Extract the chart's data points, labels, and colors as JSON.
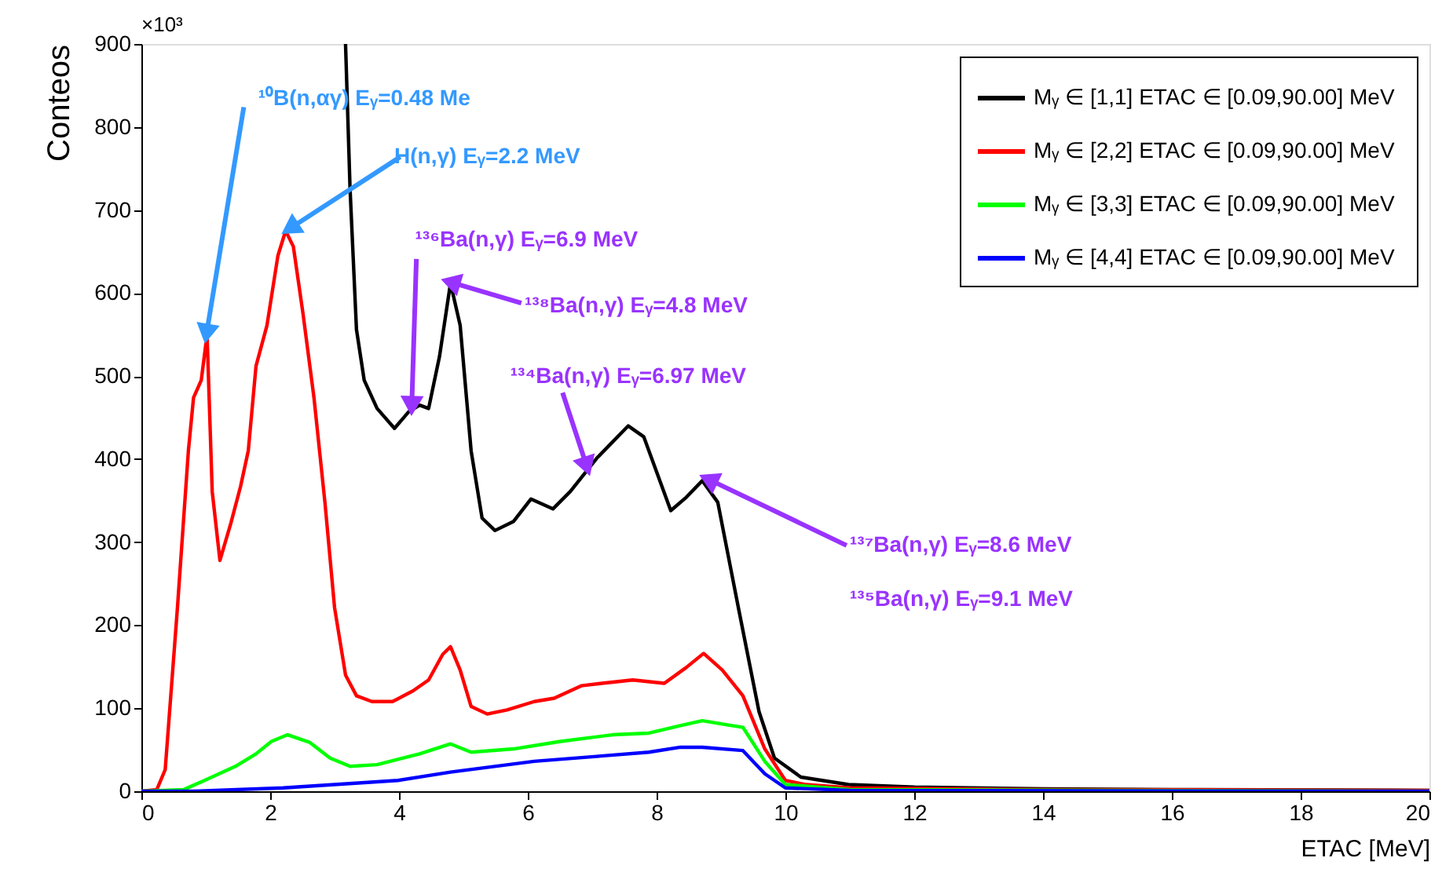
{
  "chart_data": {
    "type": "line",
    "xlabel": "ETAC [MeV]",
    "ylabel": "Conteos",
    "xlim": [
      0,
      20
    ],
    "xticks": [
      0,
      2,
      4,
      6,
      8,
      10,
      12,
      14,
      16,
      18,
      20
    ],
    "ylim": [
      0,
      900
    ],
    "yticks": [
      0,
      100,
      200,
      300,
      400,
      500,
      600,
      700,
      800,
      900
    ],
    "grid": false,
    "legend": "top right",
    "series": [
      {
        "name": "Mᵧ ∈ [1,1]  ETAC ∈ [0.09,90.00] MeV",
        "color": "#000000",
        "x": [
          3.17,
          3.24,
          3.34,
          3.46,
          3.66,
          3.93,
          4.15,
          4.32,
          4.46,
          4.63,
          4.8,
          4.95,
          5.12,
          5.29,
          5.49,
          5.78,
          6.05,
          6.39,
          6.66,
          7.07,
          7.56,
          7.8,
          8.22,
          8.46,
          8.71,
          8.95,
          9.27,
          9.59,
          9.83,
          10.24,
          10.98,
          12,
          14,
          16,
          20
        ],
        "values": [
          900,
          726,
          556,
          495,
          461,
          437,
          457,
          465,
          461,
          524,
          612,
          561,
          410,
          329,
          314,
          325,
          352,
          340,
          361,
          401,
          440,
          427,
          338,
          354,
          374,
          348,
          221,
          96,
          40,
          17,
          8,
          5,
          3,
          2,
          1
        ]
      },
      {
        "name": "Mᵧ ∈ [2,2]  ETAC ∈ [0.09,90.00] MeV",
        "color": "#ff0000",
        "x": [
          0,
          0.24,
          0.37,
          0.56,
          0.73,
          0.81,
          0.93,
          1.02,
          1.1,
          1.22,
          1.39,
          1.54,
          1.66,
          1.78,
          1.95,
          2.12,
          2.24,
          2.36,
          2.51,
          2.68,
          2.85,
          3.0,
          3.17,
          3.34,
          3.58,
          3.9,
          4.22,
          4.46,
          4.68,
          4.8,
          4.95,
          5.12,
          5.37,
          5.68,
          6.1,
          6.41,
          6.83,
          7.15,
          7.63,
          8.12,
          8.46,
          8.73,
          9.02,
          9.34,
          9.68,
          10.0,
          10.32,
          11,
          14,
          20
        ],
        "values": [
          0,
          2,
          26,
          221,
          410,
          474,
          495,
          550,
          361,
          278,
          323,
          367,
          410,
          512,
          561,
          645,
          675,
          656,
          575,
          474,
          348,
          221,
          140,
          115,
          108,
          108,
          121,
          134,
          165,
          174,
          146,
          102,
          93,
          98,
          108,
          112,
          127,
          130,
          134,
          130,
          149,
          166,
          146,
          115,
          51,
          13,
          8,
          4,
          2,
          1
        ]
      },
      {
        "name": "Mᵧ ∈ [3,3]  ETAC ∈ [0.09,90.00] MeV",
        "color": "#00ff00",
        "x": [
          0,
          0.66,
          0.98,
          1.46,
          1.78,
          2.02,
          2.27,
          2.61,
          2.93,
          3.24,
          3.66,
          4.32,
          4.8,
          5.12,
          5.78,
          6.51,
          7.32,
          7.88,
          8.37,
          8.71,
          9.02,
          9.34,
          9.68,
          10.0,
          11,
          20
        ],
        "values": [
          0,
          2,
          13,
          30,
          45,
          60,
          68,
          59,
          40,
          30,
          32,
          45,
          57,
          47,
          51,
          60,
          68,
          70,
          79,
          85,
          81,
          77,
          36,
          8,
          2,
          0
        ]
      },
      {
        "name": "Mᵧ ∈ [4,4]  ETAC ∈ [0.09,90.00] MeV",
        "color": "#0000ff",
        "x": [
          0,
          0.8,
          2.2,
          3.98,
          4.8,
          6.1,
          7.07,
          7.88,
          8.37,
          8.71,
          9.34,
          9.68,
          10.0,
          11,
          20
        ],
        "values": [
          0,
          0,
          4,
          13,
          23,
          36,
          42,
          47,
          53,
          53,
          49,
          21,
          4,
          1,
          0
        ]
      }
    ],
    "annotations": [
      {
        "text": "¹⁰B(n,αγ) Eᵧ=0.48 Me",
        "x": 1.02,
        "y": 555
      },
      {
        "text": "H(n,γ) Eᵧ=2.2 MeV",
        "x": 2.35,
        "y": 680
      },
      {
        "text": "¹³⁶Ba(n,γ)    Eᵧ=6.9 MeV",
        "x": 4.2,
        "y": 468
      },
      {
        "text": "¹³⁸Ba(n,γ) Eᵧ=4.8 MeV",
        "x": 4.85,
        "y": 612
      },
      {
        "text": "¹³⁴Ba(n,γ) Eᵧ=6.97 MeV",
        "x": 6.9,
        "y": 395
      },
      {
        "text": "¹³⁷Ba(n,γ)  Eᵧ=8.6 MeV",
        "x": 8.85,
        "y": 374
      },
      "¹³⁵Ba(n,γ)  Eᵧ=9.1 MeV",
      "×10³"
    ]
  }
}
